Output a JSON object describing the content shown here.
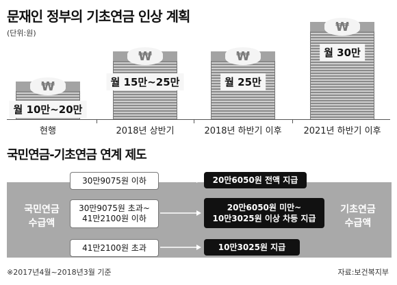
{
  "title": "문재인 정부의 기초연금 인상 계획",
  "unit": "(단위:원)",
  "chart_data": {
    "type": "bar",
    "categories": [
      "현행",
      "2018년 상반기",
      "2018년 하반기 이후",
      "2021년 하반기 이후"
    ],
    "amount_labels": [
      "월 10만~20만",
      "월 15만~25만",
      "월 25만",
      "월 30만"
    ],
    "values": [
      200000,
      250000,
      250000,
      300000
    ],
    "value_ranges": [
      [
        100000,
        200000
      ],
      [
        150000,
        250000
      ],
      [
        250000,
        250000
      ],
      [
        300000,
        300000
      ]
    ],
    "ylabel": "원",
    "icon": "won-coin-stack"
  },
  "section_title": "국민연금-기초연금 연계 제도",
  "left_label": [
    "국민연금",
    "수급액"
  ],
  "right_label": [
    "기초연금",
    "수급액"
  ],
  "rows": [
    {
      "condition": [
        "30만9075원 이하"
      ],
      "result": [
        "20만6050원 전액 지급"
      ]
    },
    {
      "condition": [
        "30만9075원 초과~",
        "41만2100원 이하"
      ],
      "result": [
        "20만6050원 미만~",
        "10만3025원 이상 차등 지급"
      ]
    },
    {
      "condition": [
        "41만2100원 초과"
      ],
      "result": [
        "10만3025원 지급"
      ]
    }
  ],
  "footnote": "※2017년4월~2018년3월 기준",
  "source": "자료:보건복지부",
  "colors": {
    "band": "#a9a9a9",
    "result_box": "#111111",
    "stack_light": "#cfcfcf",
    "stack_dark": "#8a8a8a"
  }
}
